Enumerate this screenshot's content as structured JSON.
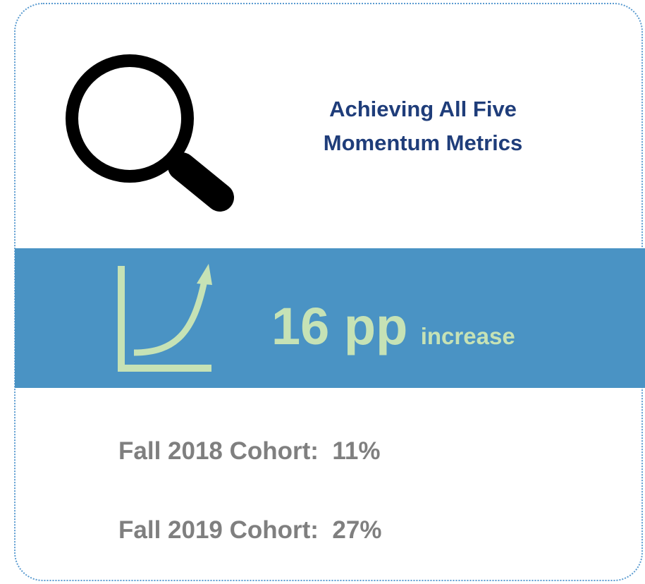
{
  "header": {
    "title_lines": [
      "Achieving All Five",
      "Momentum Metrics"
    ]
  },
  "banner": {
    "value": "16 pp",
    "unit": "increase"
  },
  "cohorts": [
    "Fall 2018 Cohort:  11%",
    "Fall 2019 Cohort:  27%"
  ]
}
